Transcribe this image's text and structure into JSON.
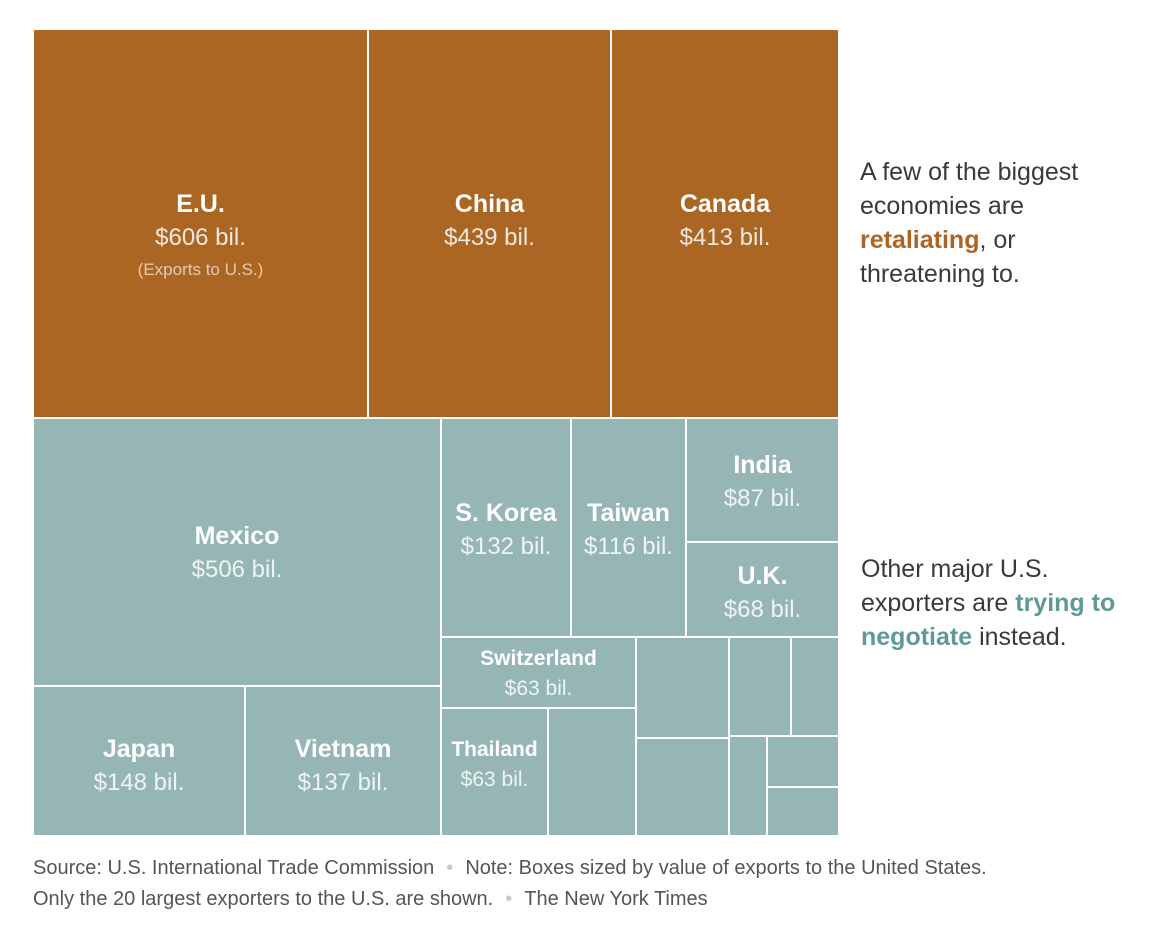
{
  "chart_data": {
    "type": "treemap",
    "colors": {
      "retaliating": "#ac6624",
      "negotiating": "#96b6b5"
    },
    "items": [
      {
        "name": "E.U.",
        "value": 606,
        "value_label": "$606 bil.",
        "note": "(Exports to U.S.)",
        "group": "retaliating"
      },
      {
        "name": "China",
        "value": 439,
        "value_label": "$439 bil.",
        "group": "retaliating"
      },
      {
        "name": "Canada",
        "value": 413,
        "value_label": "$413 bil.",
        "group": "retaliating"
      },
      {
        "name": "Mexico",
        "value": 506,
        "value_label": "$506 bil.",
        "group": "negotiating"
      },
      {
        "name": "Japan",
        "value": 148,
        "value_label": "$148 bil.",
        "group": "negotiating"
      },
      {
        "name": "Vietnam",
        "value": 137,
        "value_label": "$137 bil.",
        "group": "negotiating"
      },
      {
        "name": "S. Korea",
        "value": 132,
        "value_label": "$132 bil.",
        "group": "negotiating"
      },
      {
        "name": "Taiwan",
        "value": 116,
        "value_label": "$116 bil.",
        "group": "negotiating"
      },
      {
        "name": "India",
        "value": 87,
        "value_label": "$87 bil.",
        "group": "negotiating"
      },
      {
        "name": "U.K.",
        "value": 68,
        "value_label": "$68 bil.",
        "group": "negotiating"
      },
      {
        "name": "Switzerland",
        "value": 63,
        "value_label": "$63 bil.",
        "group": "negotiating"
      },
      {
        "name": "Thailand",
        "value": 63,
        "value_label": "$63 bil.",
        "group": "negotiating"
      }
    ]
  },
  "annotations": {
    "top": {
      "before": "A few of the biggest economies are ",
      "highlight": "retaliating",
      "after": ", or threatening to."
    },
    "bottom": {
      "before": "Other major U.S. exporters are ",
      "highlight": "trying to negotiate",
      "after": " instead."
    }
  },
  "footer": {
    "source": "Source: U.S. International Trade Commission",
    "note": "Note: Boxes sized by value of exports to the United States.",
    "only": "Only the 20 largest exporters to the U.S. are shown.",
    "credit": "The New York Times"
  }
}
